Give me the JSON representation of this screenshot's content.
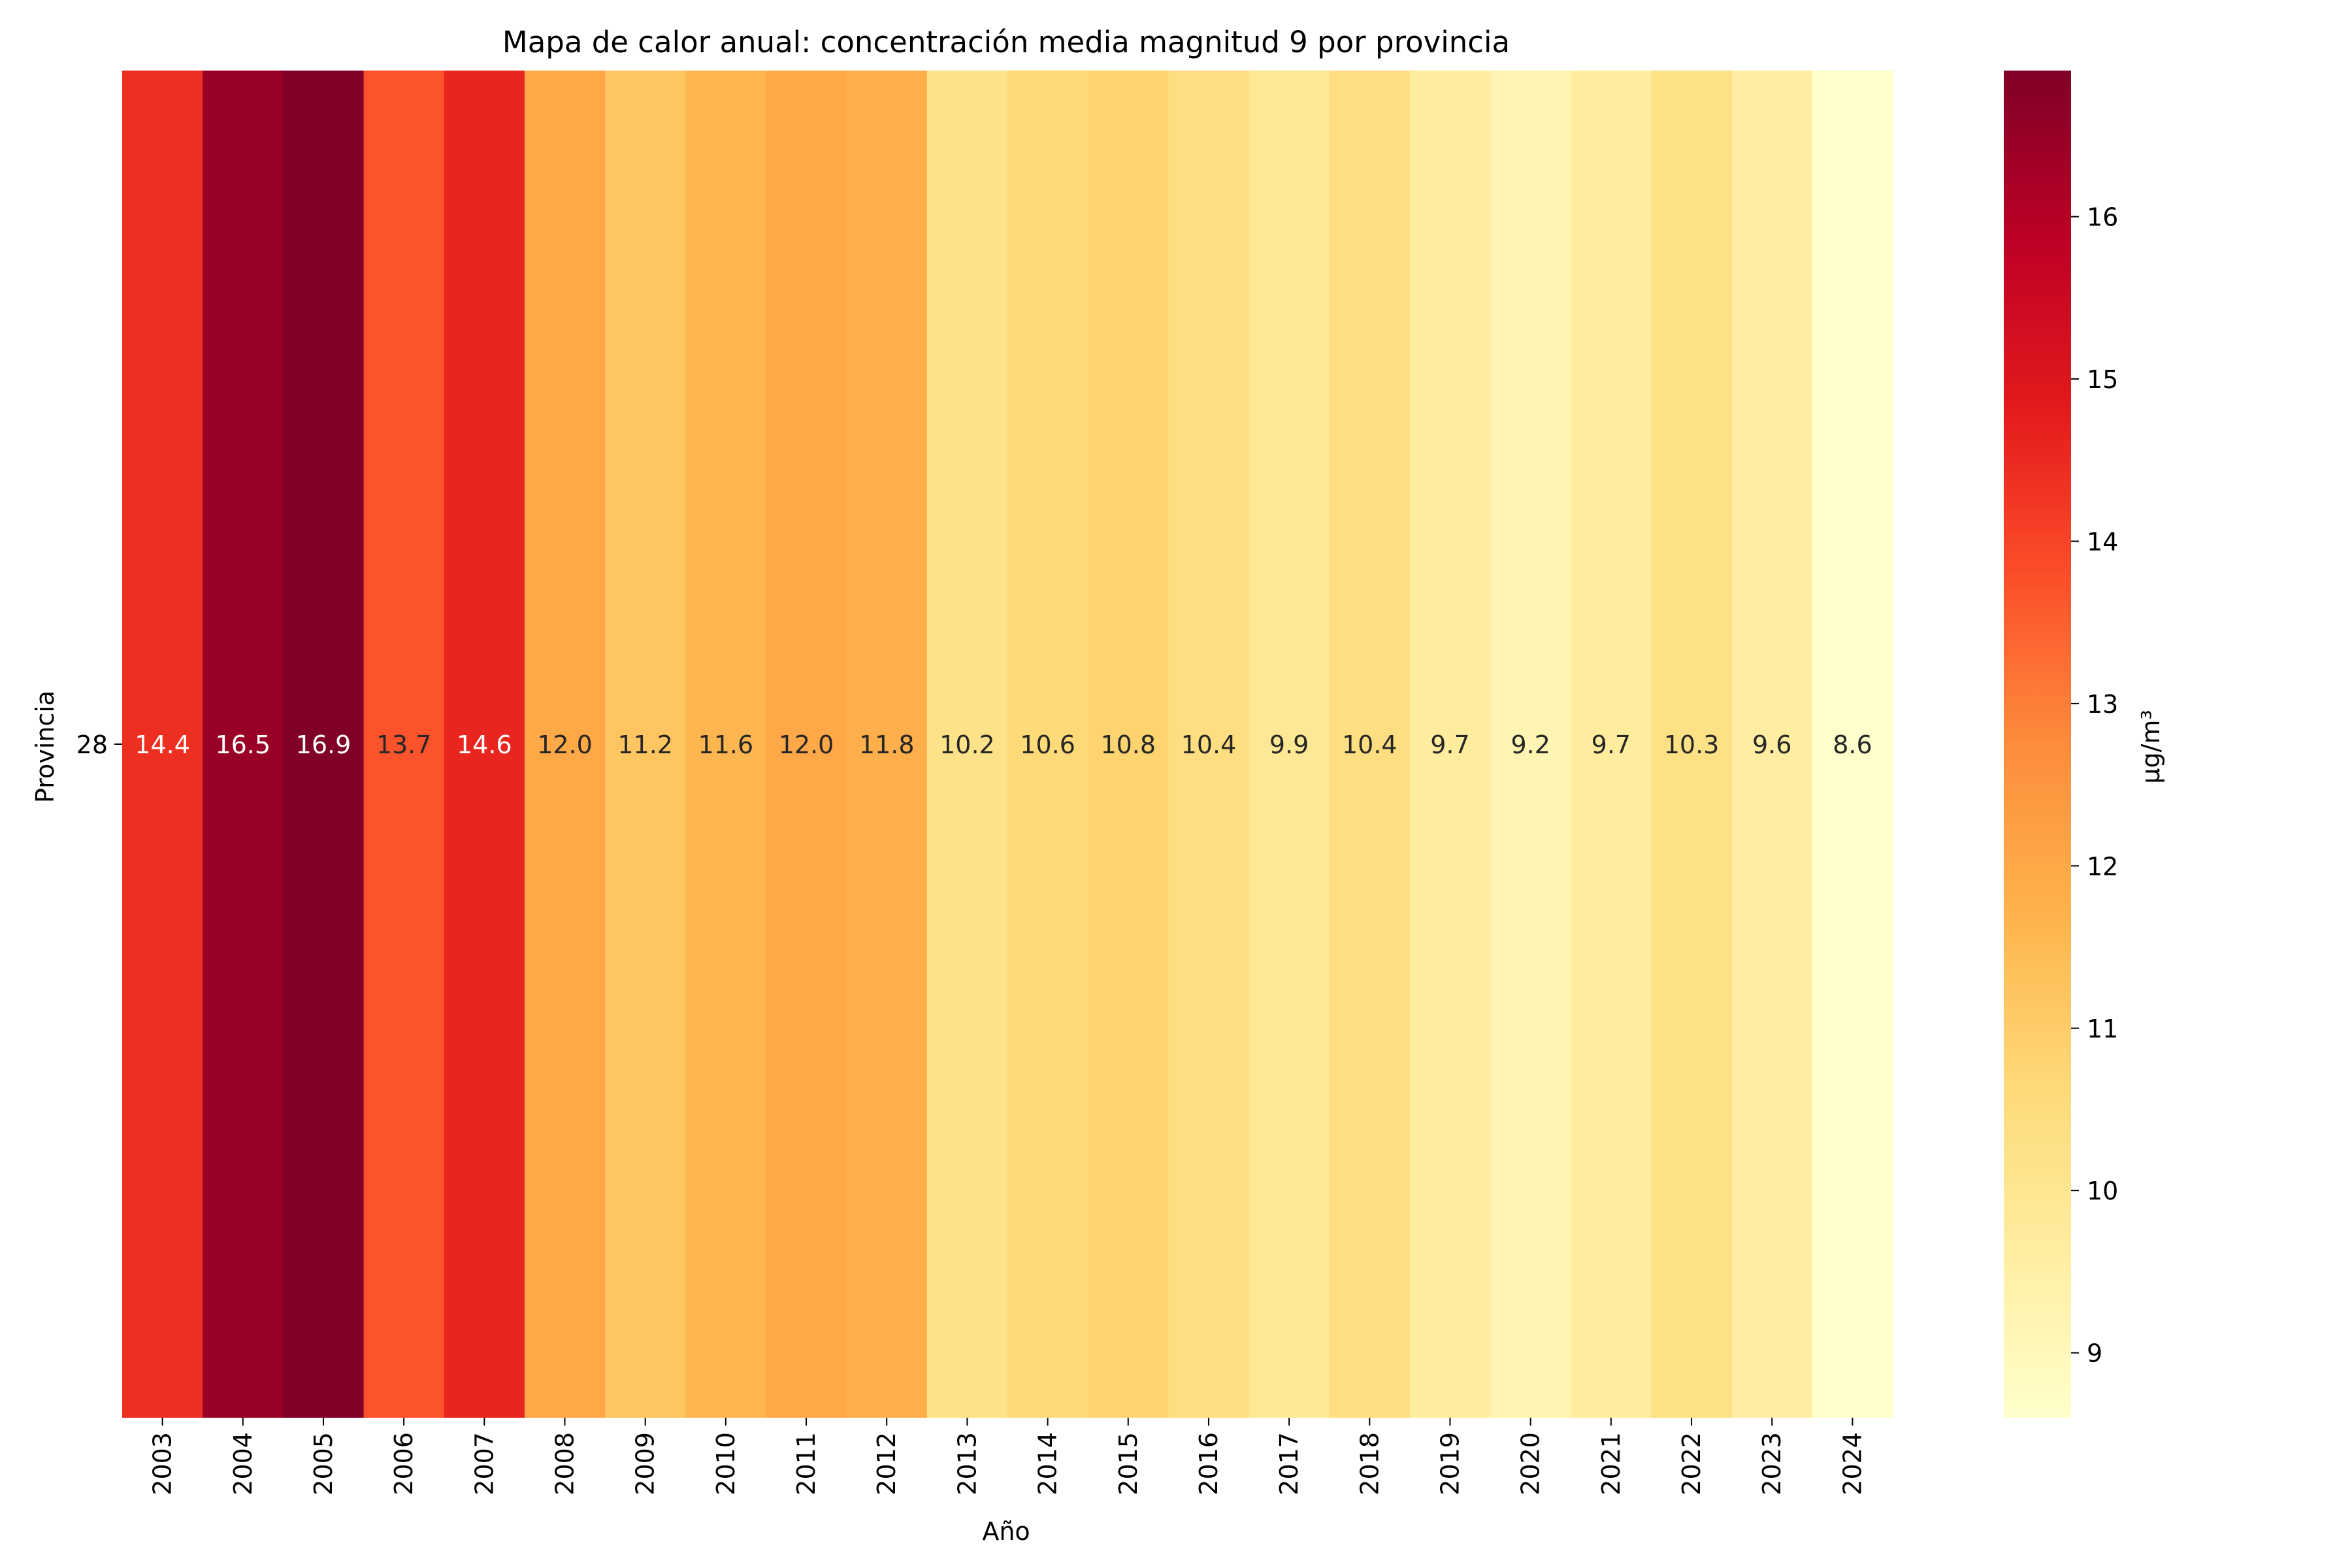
{
  "chart_data": {
    "type": "heatmap",
    "title": "Mapa de calor anual: concentración media magnitud 9 por provincia",
    "xlabel": "Año",
    "ylabel": "Provincia",
    "x": [
      "2003",
      "2004",
      "2005",
      "2006",
      "2007",
      "2008",
      "2009",
      "2010",
      "2011",
      "2012",
      "2013",
      "2014",
      "2015",
      "2016",
      "2017",
      "2018",
      "2019",
      "2020",
      "2021",
      "2022",
      "2023",
      "2024"
    ],
    "y": [
      "28"
    ],
    "values": [
      [
        14.4,
        16.5,
        16.9,
        13.7,
        14.6,
        12.0,
        11.2,
        11.6,
        12.0,
        11.8,
        10.2,
        10.6,
        10.8,
        10.4,
        9.9,
        10.4,
        9.7,
        9.2,
        9.7,
        10.3,
        9.6,
        8.6
      ]
    ],
    "cell_labels": [
      [
        "14.4",
        "16.5",
        "16.9",
        "13.7",
        "14.6",
        "12.0",
        "11.2",
        "11.6",
        "12.0",
        "11.8",
        "10.2",
        "10.6",
        "10.8",
        "10.4",
        "9.9",
        "10.4",
        "9.7",
        "9.2",
        "9.7",
        "10.3",
        "9.6",
        "8.6"
      ]
    ],
    "colormap": "YlOrRd",
    "colorbar": {
      "label": "µg/m³",
      "range": [
        8.6,
        16.9
      ],
      "ticks": [
        9,
        10,
        11,
        12,
        13,
        14,
        15,
        16
      ],
      "tick_labels": [
        "9",
        "10",
        "11",
        "12",
        "13",
        "14",
        "15",
        "16"
      ]
    },
    "colors": {
      "ramp": [
        "#ffffcc",
        "#ffeda0",
        "#fed976",
        "#feb24c",
        "#fd8d3c",
        "#fc4e2a",
        "#e31a1c",
        "#bd0026",
        "#800026"
      ],
      "label_dark": "#262626",
      "label_light": "#ffffff"
    }
  }
}
